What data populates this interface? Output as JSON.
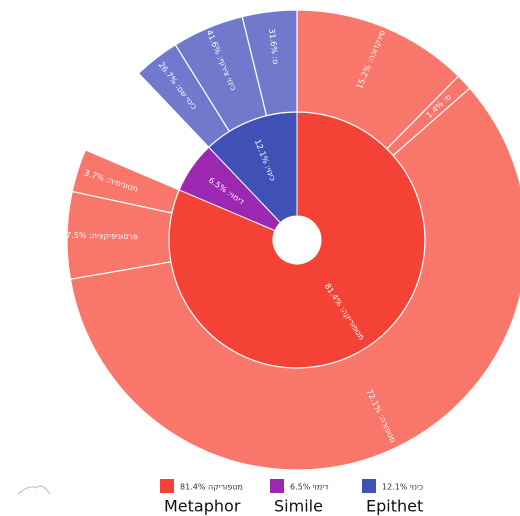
{
  "chart_data": {
    "type": "sunburst",
    "inner": [
      {
        "name": "מטפוריקה",
        "label": "מטפוריקה: 81.4%",
        "value": 81.4,
        "color": "#f44336",
        "children": [
          {
            "label": "סינקדוכה: 15.2%",
            "value": 15.2
          },
          {
            "label": "ס: 1.4%",
            "value": 1.4
          },
          {
            "label": "מטפורה: 72.1%",
            "value": 72.1
          },
          {
            "label": "פרסוניפיקציה: 7.5%",
            "value": 7.5
          },
          {
            "label": "מטונימיה: 3.7%",
            "value": 3.7
          }
        ],
        "child_color": "#f8766a"
      },
      {
        "name": "דימוי",
        "label": "דימוי: 6.5%",
        "value": 6.5,
        "color": "#9c27b0",
        "children": [],
        "child_color": "#b45ac4"
      },
      {
        "name": "כינוי",
        "label": "כינוי: 12.1%",
        "value": 12.1,
        "color": "#3f51b5",
        "children": [
          {
            "label": "כינוי שם: 26.7%",
            "value": 26.7
          },
          {
            "label": "כינוי צירוף: 41.6%",
            "value": 41.6
          },
          {
            "label": "ס: 31.6%",
            "value": 31.6
          }
        ],
        "child_color": "#7179cc"
      }
    ],
    "legend": [
      {
        "label": "מטפוריקה 81.4%",
        "caption": "Metaphor"
      },
      {
        "label": "דימוי 6.5%",
        "caption": "Simile"
      },
      {
        "label": "כינוי 12.1%",
        "caption": "Epithet"
      }
    ]
  }
}
